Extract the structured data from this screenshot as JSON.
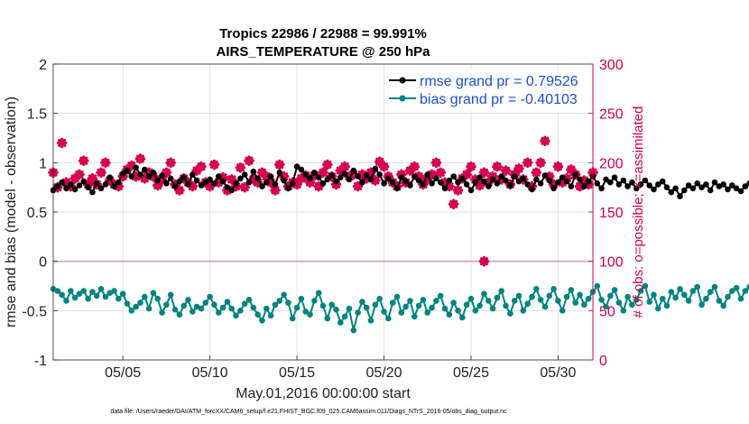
{
  "chart_data": {
    "type": "line",
    "title": "Tropics 22986 / 22988 = 99.991%",
    "subtitle": "AIRS_TEMPERATURE @ 250 hPa",
    "xlabel": "May.01,2016 00:00:00 start",
    "ylabel": "rmse and bias (model - observation)",
    "ylabel_right": "# of obs: o=possible; ×=assimilated",
    "footnote": "data file: /Users/raeder/DAI/ATM_forcXX/CAM6_setup/f.e21.FHIST_BGC.f09_025.CAM6assim.011/Diags_NTrS_2016-05/obs_diag_output.nc",
    "xlim": [
      1,
      32
    ],
    "ylim": [
      -1,
      2
    ],
    "ylim_right": [
      0,
      300
    ],
    "xticks": [
      5,
      10,
      15,
      20,
      25,
      30
    ],
    "xtick_labels": [
      "05/05",
      "05/10",
      "05/15",
      "05/20",
      "05/25",
      "05/30"
    ],
    "yticks": [
      -1,
      -0.5,
      0,
      0.5,
      1,
      1.5,
      2
    ],
    "ytick_labels": [
      "-1",
      "-0.5",
      "0",
      "0.5",
      "1",
      "1.5",
      "2"
    ],
    "yticks_right": [
      0,
      50,
      100,
      150,
      200,
      250,
      300
    ],
    "ytick_labels_right": [
      "0",
      "50",
      "100",
      "150",
      "200",
      "250",
      "300"
    ],
    "grid": true,
    "legend": "top-right",
    "series": [
      {
        "name": "rmse grand pr = 0.79526",
        "color": "#000000",
        "axis": "left",
        "step_days": 0.25,
        "start_day": 1.0,
        "values": [
          0.72,
          0.76,
          0.8,
          0.74,
          0.78,
          0.73,
          0.77,
          0.81,
          0.75,
          0.7,
          0.79,
          0.74,
          0.78,
          0.85,
          0.76,
          0.8,
          0.89,
          0.92,
          0.86,
          0.95,
          0.88,
          0.93,
          0.86,
          0.9,
          0.82,
          0.87,
          0.79,
          0.84,
          0.76,
          0.81,
          0.85,
          0.78,
          0.88,
          0.82,
          0.77,
          0.8,
          0.83,
          0.79,
          0.86,
          0.81,
          0.75,
          0.72,
          0.79,
          0.84,
          0.88,
          0.8,
          0.91,
          0.84,
          0.76,
          0.8,
          0.86,
          0.78,
          0.9,
          0.82,
          0.74,
          0.79,
          0.96,
          0.93,
          0.88,
          0.84,
          0.9,
          0.85,
          0.79,
          0.83,
          0.87,
          0.81,
          0.85,
          0.89,
          0.83,
          0.92,
          0.86,
          0.8,
          0.87,
          0.83,
          0.94,
          0.88,
          0.79,
          0.84,
          0.8,
          0.74,
          0.85,
          0.81,
          0.77,
          0.86,
          0.82,
          0.78,
          0.88,
          0.79,
          0.84,
          0.8,
          0.74,
          0.82,
          0.86,
          0.8,
          0.84,
          0.78,
          0.72,
          0.8,
          0.85,
          0.81,
          0.76,
          0.83,
          0.79,
          0.86,
          0.82,
          0.77,
          0.86,
          0.81,
          0.84,
          0.78,
          0.73,
          0.83,
          0.79,
          0.87,
          0.82,
          0.74,
          0.8,
          0.85,
          0.81,
          0.76,
          0.88,
          0.83,
          0.76,
          0.81,
          0.86,
          0.79,
          0.74,
          0.83,
          0.8,
          0.85,
          0.78,
          0.82,
          0.76,
          0.8,
          0.74,
          0.78,
          0.82,
          0.77,
          0.73,
          0.78,
          0.81,
          0.75,
          0.7,
          0.74,
          0.66,
          0.72,
          0.77,
          0.74,
          0.79,
          0.75,
          0.78,
          0.72,
          0.8,
          0.76,
          0.78,
          0.73,
          0.77,
          0.74,
          0.71,
          0.76,
          0.79,
          0.74,
          0.72,
          0.7,
          0.75,
          0.86,
          0.8,
          0.74,
          0.78,
          0.71,
          0.76,
          0.72,
          0.8,
          0.73,
          0.64,
          0.76,
          0.82,
          0.74,
          0.77,
          0.71,
          0.78,
          0.73,
          0.8,
          0.75,
          0.71,
          0.79,
          0.74,
          0.78,
          0.82,
          0.76,
          0.72,
          0.77,
          0.81,
          0.74,
          0.67,
          0.7,
          0.75,
          0.78,
          0.72,
          0.76,
          0.78,
          0.79,
          0.77,
          0.78
        ]
      },
      {
        "name": "bias grand pr = -0.40103",
        "color": "#00847f",
        "axis": "left",
        "step_days": 0.25,
        "start_day": 1.0,
        "values": [
          -0.28,
          -0.3,
          -0.34,
          -0.4,
          -0.3,
          -0.37,
          -0.33,
          -0.3,
          -0.38,
          -0.31,
          -0.35,
          -0.28,
          -0.36,
          -0.32,
          -0.3,
          -0.38,
          -0.33,
          -0.43,
          -0.5,
          -0.46,
          -0.42,
          -0.36,
          -0.48,
          -0.32,
          -0.38,
          -0.52,
          -0.44,
          -0.34,
          -0.49,
          -0.54,
          -0.45,
          -0.39,
          -0.51,
          -0.46,
          -0.48,
          -0.42,
          -0.36,
          -0.44,
          -0.52,
          -0.47,
          -0.41,
          -0.48,
          -0.55,
          -0.5,
          -0.43,
          -0.39,
          -0.47,
          -0.54,
          -0.6,
          -0.48,
          -0.55,
          -0.44,
          -0.4,
          -0.34,
          -0.42,
          -0.58,
          -0.47,
          -0.38,
          -0.51,
          -0.54,
          -0.4,
          -0.32,
          -0.45,
          -0.58,
          -0.44,
          -0.49,
          -0.62,
          -0.56,
          -0.48,
          -0.7,
          -0.52,
          -0.41,
          -0.47,
          -0.6,
          -0.44,
          -0.38,
          -0.51,
          -0.58,
          -0.42,
          -0.36,
          -0.52,
          -0.46,
          -0.4,
          -0.56,
          -0.45,
          -0.39,
          -0.52,
          -0.47,
          -0.4,
          -0.35,
          -0.48,
          -0.54,
          -0.42,
          -0.5,
          -0.57,
          -0.44,
          -0.38,
          -0.5,
          -0.45,
          -0.33,
          -0.4,
          -0.48,
          -0.37,
          -0.3,
          -0.45,
          -0.53,
          -0.4,
          -0.35,
          -0.5,
          -0.43,
          -0.36,
          -0.28,
          -0.39,
          -0.46,
          -0.35,
          -0.28,
          -0.4,
          -0.5,
          -0.36,
          -0.29,
          -0.42,
          -0.34,
          -0.44,
          -0.38,
          -0.31,
          -0.25,
          -0.39,
          -0.46,
          -0.35,
          -0.29,
          -0.42,
          -0.5,
          -0.36,
          -0.44,
          -0.39,
          -0.3,
          -0.25,
          -0.41,
          -0.34,
          -0.48,
          -0.38,
          -0.45,
          -0.31,
          -0.37,
          -0.28,
          -0.34,
          -0.4,
          -0.3,
          -0.26,
          -0.44,
          -0.38,
          -0.31,
          -0.26,
          -0.4,
          -0.45,
          -0.36,
          -0.3,
          -0.27,
          -0.38,
          -0.3,
          -0.26,
          -0.4,
          -0.45,
          -0.35,
          -0.28,
          -0.24,
          -0.32,
          -0.18,
          -0.37,
          -0.42,
          -0.33,
          -0.25,
          -0.36,
          -0.48,
          -0.21,
          -0.34,
          -0.45,
          -0.22,
          -0.38,
          -0.44,
          -0.12,
          -0.3,
          -0.5,
          -0.22,
          -0.08,
          -0.36,
          -0.42,
          -0.18,
          -0.3,
          -0.44,
          -0.24,
          -0.35,
          -0.4,
          -0.26,
          -0.48,
          -0.3,
          -0.22,
          -0.38,
          -0.44,
          -0.3,
          -0.25,
          -0.36,
          -0.28,
          -0.32,
          -0.24,
          -0.3,
          -0.28,
          -0.26,
          -0.34,
          -0.22
        ]
      },
      {
        "name": "assimilated obs",
        "color": "#d6004e",
        "axis": "right",
        "marker": "star",
        "step_days": 0.25,
        "start_day": 1.0,
        "values": [
          190,
          175,
          220,
          180,
          176,
          184,
          188,
          202,
          178,
          184,
          178,
          190,
          200,
          182,
          178,
          176,
          186,
          193,
          197,
          186,
          204,
          184,
          190,
          186,
          177,
          183,
          190,
          200,
          178,
          172,
          184,
          180,
          176,
          192,
          196,
          180,
          176,
          198,
          180,
          185,
          172,
          183,
          176,
          195,
          175,
          202,
          183,
          180,
          190,
          186,
          180,
          172,
          198,
          186,
          176,
          180,
          178,
          184,
          187,
          180,
          187,
          176,
          190,
          198,
          186,
          178,
          192,
          196,
          186,
          188,
          176,
          188,
          184,
          190,
          182,
          201,
          196,
          186,
          180,
          176,
          188,
          180,
          192,
          196,
          186,
          178,
          184,
          188,
          200,
          190,
          180,
          176,
          158,
          172,
          184,
          188,
          196,
          183,
          177,
          190,
          180,
          186,
          196,
          183,
          192,
          178,
          188,
          194,
          183,
          200,
          176,
          190,
          200,
          222,
          186,
          178,
          196,
          180,
          184,
          193,
          188,
          176,
          182,
          178,
          190,
          200,
          186,
          176,
          180,
          188,
          196,
          176,
          183,
          200,
          176,
          184,
          190,
          197,
          178,
          180,
          188,
          203,
          198,
          184,
          190,
          196,
          184,
          176,
          188,
          196,
          178,
          200,
          186,
          190,
          184,
          196,
          176,
          188,
          178,
          200,
          186,
          190,
          176,
          184,
          197,
          180,
          188,
          196,
          182,
          178,
          190,
          186,
          176,
          183,
          196,
          180,
          188,
          184,
          192,
          200,
          178,
          186,
          178,
          190,
          182,
          200,
          186,
          176,
          194,
          180,
          188,
          190,
          196,
          186,
          176,
          183,
          188,
          196,
          178,
          190,
          184,
          186,
          200,
          180,
          176,
          192,
          198,
          196,
          190,
          196,
          184,
          186,
          190,
          196,
          184,
          188,
          200,
          0
        ]
      }
    ],
    "possible_obs_markers": [
      {
        "day": 25.75,
        "value": 100
      }
    ]
  }
}
